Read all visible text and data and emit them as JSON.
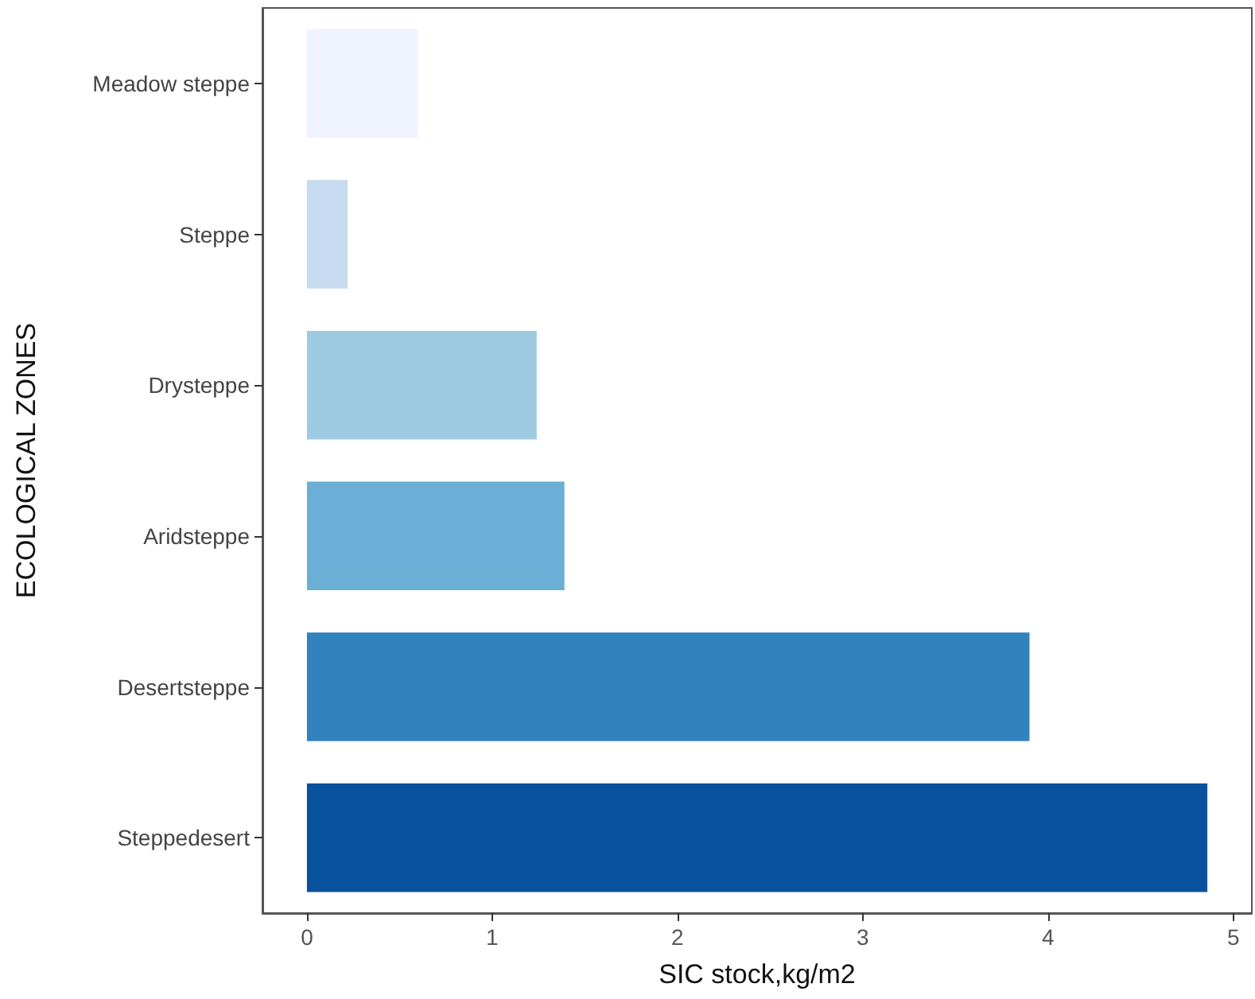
{
  "chart_data": {
    "type": "bar",
    "orientation": "horizontal",
    "xlabel": "SIC stock,kg/m2",
    "ylabel": "ECOLOGICAL ZONES",
    "categories": [
      "Meadow steppe",
      "Steppe",
      "Drysteppe",
      "Aridsteppe",
      "Desertsteppe",
      "Steppedesert"
    ],
    "values": [
      0.6,
      0.22,
      1.24,
      1.39,
      3.9,
      4.86
    ],
    "colors": [
      "#eff3ff",
      "#c6dbef",
      "#9ecae1",
      "#6baed6",
      "#3182bd",
      "#08519c"
    ],
    "xlim": [
      -0.24,
      5.1
    ],
    "xticks": [
      0,
      1,
      2,
      3,
      4,
      5
    ],
    "grid": false
  }
}
